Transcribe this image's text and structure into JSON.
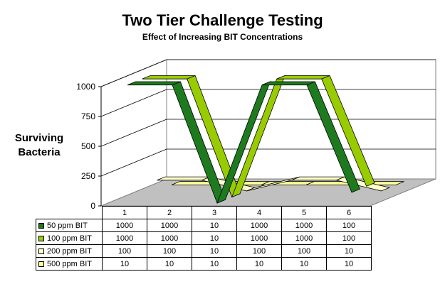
{
  "chart_data": {
    "type": "line",
    "title": "Two Tier Challenge Testing",
    "subtitle": "Effect of Increasing BIT Concentrations",
    "ylabel": "Surviving Bacteria",
    "xlabel": "",
    "ylim": [
      0,
      1000
    ],
    "yticks": [
      "0",
      "250",
      "500",
      "750",
      "1000"
    ],
    "categories": [
      "1",
      "2",
      "3",
      "4",
      "5",
      "6"
    ],
    "grid": true,
    "style": "3d-ribbon",
    "series": [
      {
        "name": "50  ppm BIT",
        "color": "#1e7a1e",
        "values": [
          1000,
          1000,
          10,
          1000,
          1000,
          100
        ]
      },
      {
        "name": "100  ppm BIT",
        "color": "#99cc00",
        "values": [
          1000,
          1000,
          10,
          1000,
          1000,
          100
        ]
      },
      {
        "name": "200  ppm BIT",
        "color": "#ffffcc",
        "values": [
          100,
          100,
          10,
          100,
          100,
          10
        ]
      },
      {
        "name": "500  ppm BIT",
        "color": "#ffff99",
        "values": [
          10,
          10,
          10,
          10,
          10,
          10
        ]
      }
    ]
  }
}
